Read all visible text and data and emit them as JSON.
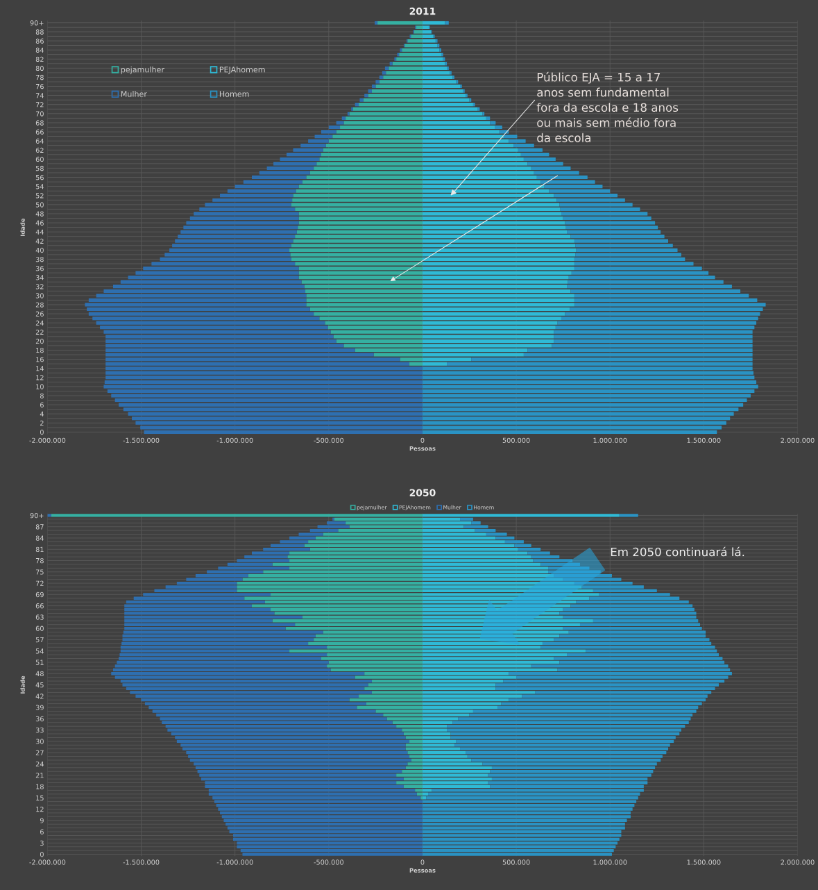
{
  "chart_data": [
    {
      "type": "bar",
      "orientation": "horizontal",
      "stacked": true,
      "title": "2011",
      "xlabel": "Pessoas",
      "ylabel": "Idade",
      "categories": [
        "90+",
        null,
        "88",
        null,
        "86",
        null,
        "84",
        null,
        "82",
        null,
        "80",
        null,
        "78",
        null,
        "76",
        null,
        "74",
        null,
        "72",
        null,
        "70",
        null,
        "68",
        null,
        "66",
        null,
        "64",
        null,
        "62",
        null,
        "60",
        null,
        "58",
        null,
        "56",
        null,
        "54",
        null,
        "52",
        null,
        "50",
        null,
        "48",
        null,
        "46",
        null,
        "44",
        null,
        "42",
        null,
        "40",
        null,
        "38",
        null,
        "36",
        null,
        "34",
        null,
        "32",
        null,
        "30",
        null,
        "28",
        null,
        "26",
        null,
        "24",
        null,
        "22",
        null,
        "20",
        null,
        "18",
        null,
        "16",
        null,
        "14",
        null,
        "12",
        null,
        "10",
        null,
        "8",
        null,
        "6",
        null,
        "4",
        null,
        "2",
        null,
        "0"
      ],
      "series": [
        {
          "name": "pejamulher",
          "color": "#35b0a2",
          "values": [
            -240000,
            -35000,
            -45000,
            -62000,
            -80000,
            -95000,
            -110000,
            -125000,
            -140000,
            -160000,
            -180000,
            -195000,
            -210000,
            -230000,
            -250000,
            -270000,
            -290000,
            -315000,
            -340000,
            -370000,
            -390000,
            -410000,
            -420000,
            -440000,
            -460000,
            -480000,
            -500000,
            -515000,
            -530000,
            -540000,
            -550000,
            -565000,
            -580000,
            -600000,
            -620000,
            -640000,
            -660000,
            -675000,
            -690000,
            -695000,
            -700000,
            -680000,
            -660000,
            -660000,
            -660000,
            -665000,
            -670000,
            -680000,
            -690000,
            -700000,
            -710000,
            -705000,
            -700000,
            -680000,
            -660000,
            -660000,
            -660000,
            -645000,
            -630000,
            -625000,
            -620000,
            -620000,
            -620000,
            -600000,
            -580000,
            -550000,
            -520000,
            -505000,
            -490000,
            -475000,
            -460000,
            -420000,
            -360000,
            -260000,
            -120000,
            -70000,
            0,
            0,
            0,
            0,
            0,
            0,
            0,
            0,
            0,
            0,
            0,
            0,
            0,
            0,
            0
          ]
        },
        {
          "name": "PEJAhomem",
          "color": "#2fbad6",
          "values": [
            120000,
            35000,
            45000,
            58000,
            70000,
            80000,
            90000,
            100000,
            110000,
            120000,
            130000,
            145000,
            160000,
            180000,
            200000,
            215000,
            230000,
            250000,
            270000,
            295000,
            320000,
            340000,
            360000,
            385000,
            410000,
            435000,
            460000,
            485000,
            510000,
            525000,
            540000,
            560000,
            580000,
            595000,
            610000,
            630000,
            650000,
            675000,
            700000,
            715000,
            730000,
            735000,
            740000,
            750000,
            760000,
            765000,
            770000,
            790000,
            810000,
            815000,
            820000,
            815000,
            810000,
            810000,
            810000,
            795000,
            780000,
            775000,
            770000,
            790000,
            810000,
            810000,
            810000,
            785000,
            760000,
            740000,
            720000,
            710000,
            700000,
            700000,
            700000,
            690000,
            560000,
            540000,
            260000,
            130000,
            0,
            0,
            0,
            0,
            0,
            0,
            0,
            0,
            0,
            0,
            0,
            0,
            0,
            0,
            0
          ]
        },
        {
          "name": "Mulher",
          "color": "#2e6fb0",
          "values": [
            -15000,
            -5000,
            -5000,
            -6000,
            -5000,
            -5000,
            -10000,
            -10000,
            -10000,
            -15000,
            -20000,
            -20000,
            -20000,
            -20000,
            -20000,
            -20000,
            -20000,
            -20000,
            -20000,
            -10000,
            -10000,
            -20000,
            -40000,
            -60000,
            -80000,
            -95000,
            -110000,
            -135000,
            -160000,
            -185000,
            -210000,
            -230000,
            -250000,
            -270000,
            -290000,
            -315000,
            -340000,
            -365000,
            -390000,
            -425000,
            -460000,
            -510000,
            -560000,
            -580000,
            -600000,
            -610000,
            -620000,
            -625000,
            -630000,
            -635000,
            -640000,
            -670000,
            -700000,
            -765000,
            -830000,
            -870000,
            -910000,
            -965000,
            -1020000,
            -1075000,
            -1120000,
            -1160000,
            -1180000,
            -1190000,
            -1200000,
            -1210000,
            -1220000,
            -1215000,
            -1210000,
            -1215000,
            -1230000,
            -1270000,
            -1330000,
            -1430000,
            -1570000,
            -1620000,
            -1690000,
            -1690000,
            -1690000,
            -1695000,
            -1700000,
            -1680000,
            -1660000,
            -1640000,
            -1620000,
            -1595000,
            -1570000,
            -1550000,
            -1530000,
            -1505000,
            -1485000
          ]
        },
        {
          "name": "Homem",
          "color": "#2a93c4",
          "values": [
            20000,
            5000,
            5000,
            7000,
            10000,
            10000,
            10000,
            10000,
            10000,
            10000,
            10000,
            10000,
            10000,
            10000,
            10000,
            10000,
            10000,
            10000,
            10000,
            10000,
            10000,
            20000,
            30000,
            40000,
            50000,
            70000,
            90000,
            110000,
            130000,
            150000,
            170000,
            190000,
            210000,
            240000,
            270000,
            290000,
            310000,
            325000,
            340000,
            365000,
            390000,
            425000,
            460000,
            470000,
            480000,
            490000,
            500000,
            500000,
            500000,
            520000,
            540000,
            565000,
            590000,
            635000,
            680000,
            730000,
            780000,
            830000,
            880000,
            905000,
            930000,
            975000,
            1020000,
            1030000,
            1040000,
            1050000,
            1060000,
            1060000,
            1060000,
            1060000,
            1060000,
            1070000,
            1200000,
            1220000,
            1500000,
            1630000,
            1760000,
            1765000,
            1770000,
            1780000,
            1790000,
            1770000,
            1750000,
            1730000,
            1710000,
            1685000,
            1660000,
            1640000,
            1620000,
            1595000,
            1570000
          ]
        }
      ],
      "xlim": [
        -2000000,
        2000000
      ],
      "xticks": [
        {
          "value": -2000000,
          "label": "-2.000.000"
        },
        {
          "value": -1500000,
          "label": "-1.500.000"
        },
        {
          "value": -1000000,
          "label": "-1.000.000"
        },
        {
          "value": -500000,
          "label": "-500.000"
        },
        0,
        {
          "value": 500000,
          "label": "500.000"
        },
        {
          "value": 1000000,
          "label": "1.000.000"
        },
        {
          "value": 1500000,
          "label": "1.500.000"
        },
        {
          "value": 2000000,
          "label": "2.000.000"
        }
      ],
      "grid": true,
      "legend": "top left",
      "annotations": [
        {
          "text": "Público EJA = 15 a 17\nanos sem fundamental\nfora da escola e 18 anos\nou mais sem médio fora\nda escola",
          "x": 150000,
          "y": "52"
        }
      ]
    },
    {
      "type": "bar",
      "orientation": "horizontal",
      "stacked": true,
      "title": "2050",
      "xlabel": "Pessoas",
      "ylabel": "Idade",
      "categories": [
        "90+",
        null,
        null,
        "87",
        null,
        null,
        "84",
        null,
        null,
        "81",
        null,
        null,
        "78",
        null,
        null,
        "75",
        null,
        null,
        "72",
        null,
        null,
        "69",
        null,
        null,
        "66",
        null,
        null,
        "63",
        null,
        null,
        "60",
        null,
        null,
        "57",
        null,
        null,
        "54",
        null,
        null,
        "51",
        null,
        null,
        "48",
        null,
        null,
        "45",
        null,
        null,
        "42",
        null,
        null,
        "39",
        null,
        null,
        "36",
        null,
        null,
        "33",
        null,
        null,
        "30",
        null,
        null,
        "27",
        null,
        null,
        "24",
        null,
        null,
        "21",
        null,
        null,
        "18",
        null,
        null,
        "15",
        null,
        null,
        "12",
        null,
        null,
        "9",
        null,
        null,
        "6",
        null,
        null,
        "3",
        null,
        null,
        "0"
      ],
      "series": [
        {
          "name": "pejamulher",
          "color": "#35b0a2",
          "values": [
            -1980000,
            -470000,
            -410000,
            -390000,
            -450000,
            -530000,
            -570000,
            -610000,
            -630000,
            -600000,
            -710000,
            -720000,
            -710000,
            -800000,
            -710000,
            -850000,
            -930000,
            -960000,
            -990000,
            -990000,
            -990000,
            -810000,
            -950000,
            -840000,
            -910000,
            -810000,
            -790000,
            -640000,
            -800000,
            -680000,
            -730000,
            -530000,
            -570000,
            -580000,
            -610000,
            -510000,
            -710000,
            -510000,
            -540000,
            -500000,
            -510000,
            -490000,
            -310000,
            -360000,
            -270000,
            -290000,
            -310000,
            -270000,
            -340000,
            -390000,
            -300000,
            -350000,
            -250000,
            -210000,
            -190000,
            -160000,
            -140000,
            -110000,
            -100000,
            -90000,
            -70000,
            -90000,
            -90000,
            -80000,
            -70000,
            -60000,
            -80000,
            -90000,
            -110000,
            -140000,
            -100000,
            -140000,
            -100000,
            -40000,
            -30000,
            -10000,
            0,
            0,
            0,
            0,
            0,
            0,
            0,
            0,
            0,
            0,
            0,
            0,
            0,
            0,
            0
          ]
        },
        {
          "name": "PEJAhomem",
          "color": "#2fbad6",
          "values": [
            1050000,
            200000,
            260000,
            220000,
            280000,
            340000,
            390000,
            440000,
            490000,
            510000,
            560000,
            580000,
            590000,
            630000,
            670000,
            670000,
            700000,
            750000,
            810000,
            850000,
            910000,
            940000,
            890000,
            820000,
            790000,
            750000,
            730000,
            750000,
            910000,
            840000,
            750000,
            780000,
            730000,
            700000,
            640000,
            630000,
            870000,
            770000,
            700000,
            730000,
            580000,
            720000,
            460000,
            500000,
            430000,
            390000,
            390000,
            600000,
            530000,
            460000,
            420000,
            400000,
            270000,
            250000,
            190000,
            160000,
            130000,
            130000,
            150000,
            150000,
            180000,
            170000,
            200000,
            230000,
            240000,
            260000,
            320000,
            370000,
            360000,
            350000,
            370000,
            350000,
            360000,
            50000,
            30000,
            20000,
            0,
            0,
            0,
            0,
            0,
            0,
            0,
            0,
            0,
            0,
            0,
            0,
            0,
            0,
            0
          ]
        },
        {
          "name": "Mulher",
          "color": "#2e6fb0",
          "values": [
            -20000,
            -10000,
            -100000,
            -170000,
            -150000,
            -130000,
            -140000,
            -150000,
            -180000,
            -250000,
            -200000,
            -230000,
            -280000,
            -240000,
            -380000,
            -300000,
            -280000,
            -300000,
            -320000,
            -380000,
            -440000,
            -680000,
            -590000,
            -740000,
            -680000,
            -780000,
            -800000,
            -950000,
            -790000,
            -910000,
            -860000,
            -1065000,
            -1030000,
            -1020000,
            -995000,
            -1100000,
            -900000,
            -1105000,
            -1080000,
            -1130000,
            -1130000,
            -1160000,
            -1350000,
            -1280000,
            -1340000,
            -1310000,
            -1270000,
            -1290000,
            -1190000,
            -1110000,
            -1180000,
            -1110000,
            -1190000,
            -1210000,
            -1210000,
            -1230000,
            -1230000,
            -1250000,
            -1240000,
            -1230000,
            -1240000,
            -1200000,
            -1190000,
            -1180000,
            -1180000,
            -1180000,
            -1140000,
            -1120000,
            -1090000,
            -1050000,
            -1080000,
            -1020000,
            -1060000,
            -1100000,
            -1110000,
            -1110000,
            -1110000,
            -1100000,
            -1090000,
            -1080000,
            -1070000,
            -1060000,
            -1050000,
            -1040000,
            -1030000,
            -1010000,
            -1010000,
            -990000,
            -990000,
            -970000,
            -960000
          ]
        },
        {
          "name": "Homem",
          "color": "#2a93c4",
          "values": [
            100000,
            70000,
            50000,
            130000,
            110000,
            110000,
            100000,
            100000,
            90000,
            120000,
            120000,
            150000,
            210000,
            210000,
            220000,
            280000,
            310000,
            310000,
            310000,
            330000,
            340000,
            380000,
            480000,
            600000,
            650000,
            700000,
            730000,
            710000,
            560000,
            640000,
            740000,
            730000,
            780000,
            830000,
            900000,
            930000,
            700000,
            810000,
            900000,
            880000,
            1050000,
            920000,
            1190000,
            1130000,
            1180000,
            1190000,
            1170000,
            940000,
            990000,
            1050000,
            1070000,
            1070000,
            1190000,
            1190000,
            1240000,
            1260000,
            1270000,
            1250000,
            1220000,
            1200000,
            1160000,
            1150000,
            1110000,
            1070000,
            1040000,
            1010000,
            930000,
            870000,
            870000,
            870000,
            830000,
            850000,
            820000,
            1130000,
            1130000,
            1130000,
            1140000,
            1130000,
            1120000,
            1110000,
            1110000,
            1090000,
            1080000,
            1080000,
            1060000,
            1060000,
            1050000,
            1040000,
            1030000,
            1020000,
            1010000
          ]
        }
      ],
      "xlim": [
        -2000000,
        2000000
      ],
      "xticks": [
        {
          "value": -2000000,
          "label": "-2.000.000"
        },
        {
          "value": -1500000,
          "label": "-1.500.000"
        },
        {
          "value": -1000000,
          "label": "-1.000.000"
        },
        {
          "value": -500000,
          "label": "-500.000"
        },
        0,
        {
          "value": 500000,
          "label": "500.000"
        },
        {
          "value": 1000000,
          "label": "1.000.000"
        },
        {
          "value": 1500000,
          "label": "1.500.000"
        },
        {
          "value": 2000000,
          "label": "2.000.000"
        }
      ],
      "grid": true,
      "legend": "top",
      "annotations": [
        "Em 2050 continuará lá."
      ]
    }
  ]
}
